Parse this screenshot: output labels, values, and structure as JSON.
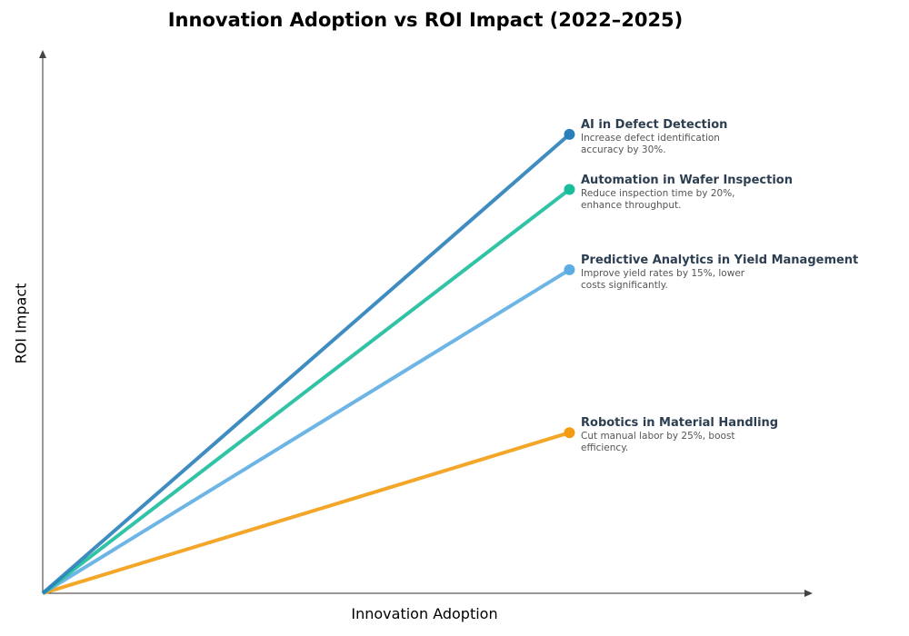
{
  "chart_data": {
    "type": "line",
    "title": "Innovation Adoption vs ROI Impact (2022–2025)",
    "xlabel": "Innovation Adoption",
    "ylabel": "ROI Impact",
    "xlim": [
      0,
      14.6
    ],
    "ylim": [
      0,
      11.8
    ],
    "grid": false,
    "series": [
      {
        "name": "AI in Defect Detection",
        "description": "Increase defect identification accuracy by 30%.",
        "color": "#2a7fba",
        "x": [
          0,
          10
        ],
        "y": [
          0,
          10.0
        ]
      },
      {
        "name": "Automation in Wafer Inspection",
        "description": "Reduce inspection time by 20%, enhance throughput.",
        "color": "#1abc9c",
        "x": [
          0,
          10
        ],
        "y": [
          0,
          8.8
        ]
      },
      {
        "name": "Predictive Analytics in Yield Management",
        "description": "Improve yield rates by 15%, lower costs significantly.",
        "color": "#5dade2",
        "x": [
          0,
          10
        ],
        "y": [
          0,
          7.05
        ]
      },
      {
        "name": "Robotics in Material Handling",
        "description": "Cut manual labor by 25%, boost efficiency.",
        "color": "#f39c12",
        "x": [
          0,
          10
        ],
        "y": [
          0,
          3.5
        ]
      }
    ]
  }
}
